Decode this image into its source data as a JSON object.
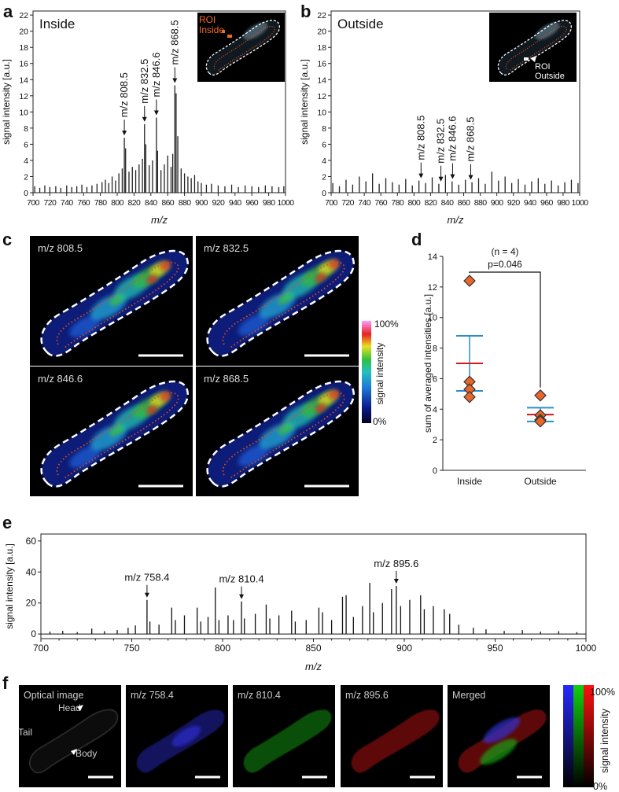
{
  "panel_labels": [
    "a",
    "b",
    "c",
    "d",
    "e",
    "f"
  ],
  "chart_data": [
    {
      "type": "stem",
      "title": "Inside",
      "ylabel": "signal intensity [a.u.]",
      "xlabel": "m/z",
      "color": "#222222",
      "x": [
        702,
        708,
        714,
        720,
        727,
        733,
        740,
        746,
        752,
        758,
        764,
        770,
        776,
        782,
        786,
        790,
        794,
        798,
        802,
        806,
        808.5,
        810,
        814,
        818,
        822,
        826,
        830,
        832.5,
        834,
        838,
        842,
        846.6,
        848,
        852,
        856,
        860,
        864,
        866,
        868.5,
        870,
        872,
        876,
        880,
        884,
        888,
        892,
        896,
        900,
        906,
        912,
        920,
        928,
        936,
        944,
        952,
        960,
        968,
        976,
        984,
        992,
        998
      ],
      "values": [
        0.8,
        0.6,
        0.9,
        0.7,
        0.8,
        0.6,
        0.9,
        0.7,
        0.8,
        1.0,
        0.7,
        0.9,
        1.1,
        1.3,
        1.6,
        1.2,
        2.0,
        1.5,
        2.4,
        3.0,
        6.8,
        5.5,
        2.6,
        3.2,
        2.8,
        3.5,
        4.2,
        8.5,
        6.0,
        3.4,
        4.0,
        9.3,
        5.2,
        2.8,
        3.5,
        4.6,
        3.2,
        4.8,
        13.3,
        12.3,
        7.0,
        3.0,
        2.4,
        2.0,
        1.8,
        2.2,
        1.4,
        1.2,
        1.0,
        1.1,
        0.9,
        0.8,
        1.0,
        0.7,
        0.9,
        0.8,
        0.7,
        0.9,
        0.8,
        0.7,
        0.8
      ],
      "xlim": [
        700,
        1000
      ],
      "ylim": [
        0,
        22.5
      ],
      "xticks": [
        700,
        720,
        740,
        760,
        780,
        800,
        820,
        840,
        860,
        880,
        900,
        920,
        940,
        960,
        980,
        1000
      ],
      "yticks": [
        0,
        2,
        4,
        6,
        8,
        10,
        12,
        14,
        16,
        18,
        20,
        22
      ],
      "annotations": [
        {
          "text": "m/z 808.5",
          "x": 808.5
        },
        {
          "text": "m/z 832.5",
          "x": 832.5
        },
        {
          "text": "m/z 846.6",
          "x": 846.6
        },
        {
          "text": "m/z 868.5",
          "x": 868.5
        }
      ],
      "inset_label": [
        "ROI",
        "Inside"
      ],
      "inset_label_color": "#f06a2a"
    },
    {
      "type": "stem",
      "title": "Outside",
      "ylabel": "signal intensity [a.u.]",
      "xlabel": "m/z",
      "color": "#222222",
      "x": [
        702,
        710,
        718,
        726,
        734,
        742,
        750,
        758,
        766,
        774,
        782,
        790,
        798,
        806,
        814,
        822,
        830,
        838,
        846,
        854,
        862,
        870,
        878,
        886,
        894,
        902,
        910,
        918,
        926,
        934,
        942,
        950,
        958,
        966,
        974,
        982,
        990,
        998
      ],
      "values": [
        1.2,
        0.8,
        1.6,
        1.0,
        2.0,
        1.4,
        2.4,
        1.1,
        1.8,
        1.3,
        1.0,
        1.7,
        0.9,
        1.5,
        1.2,
        1.9,
        1.1,
        2.2,
        1.4,
        1.0,
        1.6,
        1.3,
        1.8,
        1.1,
        2.6,
        1.5,
        2.0,
        1.2,
        1.7,
        1.0,
        1.4,
        1.8,
        1.1,
        1.5,
        0.9,
        1.3,
        1.6,
        1.2
      ],
      "xlim": [
        700,
        1000
      ],
      "ylim": [
        0,
        22.5
      ],
      "xticks": [
        700,
        720,
        740,
        760,
        780,
        800,
        820,
        840,
        860,
        880,
        900,
        920,
        940,
        960,
        980,
        1000
      ],
      "yticks": [
        0,
        2,
        4,
        6,
        8,
        10,
        12,
        14,
        16,
        18,
        20,
        22
      ],
      "annotations": [
        {
          "text": "m/z 808.5",
          "x": 808.5
        },
        {
          "text": "m/z 832.5",
          "x": 832.5
        },
        {
          "text": "m/z 846.6",
          "x": 846.6
        },
        {
          "text": "m/z 868.5",
          "x": 868.5
        }
      ],
      "inset_label": [
        "ROI",
        "Outside"
      ],
      "inset_label_color": "#ffffff"
    },
    {
      "type": "dot",
      "ylabel": "sum of averaged intensities [a.u.]",
      "categories": [
        "Inside",
        "Outside"
      ],
      "points": [
        [
          12.4,
          5.8,
          5.3,
          4.8
        ],
        [
          4.9,
          3.6,
          3.3,
          3.2
        ]
      ],
      "mean": [
        7.0,
        3.65
      ],
      "error": [
        1.8,
        0.45
      ],
      "ylim": [
        0,
        14
      ],
      "yticks": [
        0,
        2,
        4,
        6,
        8,
        10,
        12,
        14
      ],
      "point_color": "#e8662a",
      "mean_color": "#d7191c",
      "error_color": "#2a8ec9",
      "annotations": [
        "(n = 4)",
        "p=0.046"
      ]
    },
    {
      "type": "stem",
      "ylabel": "signal intensity [a.u.]",
      "xlabel": "m/z",
      "color": "#111111",
      "x": [
        705,
        712,
        720,
        728,
        735,
        742,
        748,
        752,
        758.4,
        760,
        765,
        772,
        774,
        779,
        786,
        788,
        792,
        796,
        798,
        803,
        806,
        810.4,
        812,
        818,
        824,
        826,
        831,
        838,
        840,
        846,
        853,
        855,
        860,
        866,
        868,
        872,
        877,
        881,
        883,
        888,
        893,
        895.6,
        898,
        903,
        909,
        911,
        916,
        922,
        925,
        930,
        938,
        945,
        955,
        965,
        975,
        985,
        995
      ],
      "values": [
        1.5,
        2.0,
        1.2,
        3.5,
        1.8,
        2.5,
        4.0,
        5.5,
        22,
        8,
        6,
        17,
        9,
        12,
        17,
        8,
        11,
        30,
        9,
        12,
        9,
        21,
        10,
        13,
        19,
        10,
        12,
        15,
        8,
        9,
        17,
        14,
        9,
        24,
        25,
        11,
        18,
        33,
        14,
        20,
        29,
        31,
        18,
        22,
        25,
        16,
        18,
        16,
        13,
        6,
        4,
        3,
        2,
        2.5,
        1.5,
        1.8,
        1.2
      ],
      "xlim": [
        700,
        1000
      ],
      "ylim": [
        -3,
        64.5
      ],
      "xticks": [
        700,
        750,
        800,
        850,
        900,
        950,
        1000
      ],
      "xminorticks": [
        710,
        720,
        730,
        740,
        760,
        770,
        780,
        790,
        810,
        820,
        830,
        840,
        860,
        870,
        880,
        890,
        910,
        920,
        930,
        940,
        960,
        970,
        980,
        990
      ],
      "yticks": [
        0,
        20,
        40,
        60
      ],
      "annotations": [
        {
          "text": "m/z 758.4",
          "x": 758.4
        },
        {
          "text": "m/z 810.4",
          "x": 810.4
        },
        {
          "text": "m/z 895.6",
          "x": 895.6
        }
      ]
    }
  ],
  "heatmaps": {
    "labels": [
      "m/z 808.5",
      "m/z 832.5",
      "m/z 846.6",
      "m/z 868.5"
    ],
    "colorbar": {
      "max": "100%",
      "min": "0%",
      "title": "signal intensity"
    }
  },
  "fluorescence": {
    "labels": [
      "Optical image",
      "m/z 758.4",
      "m/z 810.4",
      "m/z 895.6",
      "Merged"
    ],
    "body_parts": [
      "Head",
      "Tail",
      "Body"
    ],
    "colorbar": {
      "max": "100%",
      "min": "0%",
      "title": "signal intensity"
    }
  }
}
